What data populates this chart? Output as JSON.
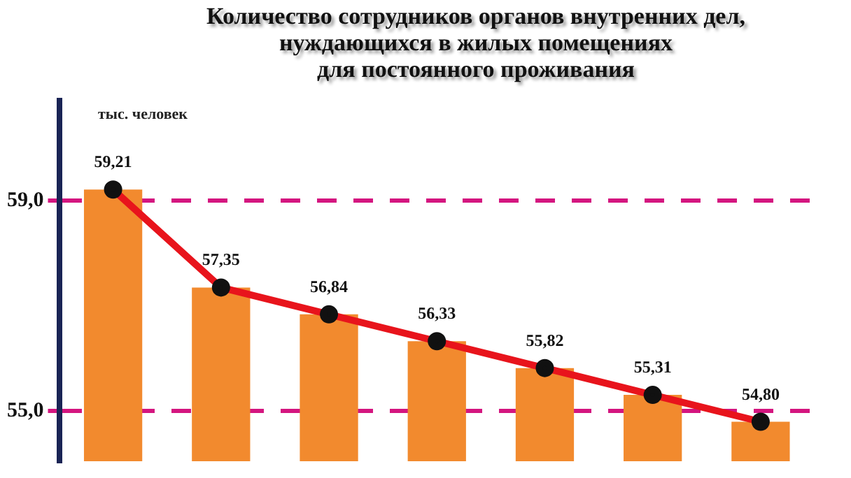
{
  "chart_data": {
    "type": "bar",
    "title": "Количество сотрудников органов внутренних дел,\nнуждающихся в жилых помещениях\nдля постоянного проживания",
    "ylabel": "тыс. человек",
    "categories": [
      null,
      null,
      null,
      null,
      null,
      null,
      null
    ],
    "series": [
      {
        "color": "#f28a2e",
        "values": [
          59.21,
          57.35,
          56.84,
          56.33,
          55.82,
          55.31,
          54.8
        ],
        "value_labels": [
          "59,21",
          "57,35",
          "56,84",
          "56,33",
          "55,82",
          "55,31",
          "54,80"
        ]
      },
      {
        "type": "line",
        "color": "#e8141c",
        "values": [
          59.21,
          57.35,
          56.84,
          56.33,
          55.82,
          55.31,
          54.8
        ]
      }
    ],
    "ylim": [
      54.05,
      60.9
    ],
    "yticks": [
      {
        "value": 55,
        "label": "55,0"
      },
      {
        "value": 59,
        "label": "59,0"
      }
    ],
    "grid": "y",
    "legend": false,
    "marker": "circle",
    "line_style": "solid",
    "tick_labels": "y"
  }
}
